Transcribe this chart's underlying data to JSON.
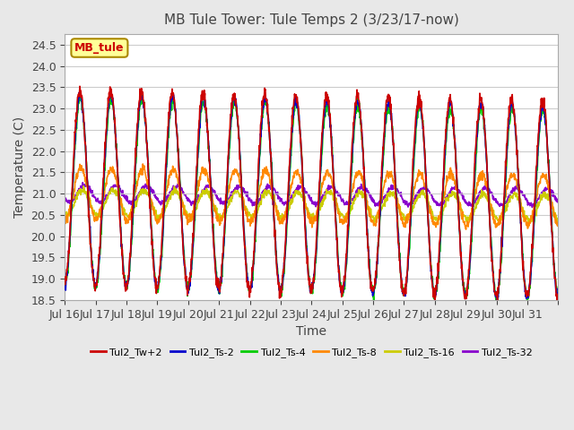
{
  "title": "MB Tule Tower: Tule Temps 2 (3/23/17-now)",
  "xlabel": "Time",
  "ylabel": "Temperature (C)",
  "ylim": [
    18.5,
    24.75
  ],
  "yticks": [
    18.5,
    19.0,
    19.5,
    20.0,
    20.5,
    21.0,
    21.5,
    22.0,
    22.5,
    23.0,
    23.5,
    24.0,
    24.5
  ],
  "xtick_labels": [
    "Jul 16",
    "Jul 17",
    "Jul 18",
    "Jul 19",
    "Jul 20",
    "Jul 21",
    "Jul 22",
    "Jul 23",
    "Jul 24",
    "Jul 25",
    "Jul 26",
    "Jul 27",
    "Jul 28",
    "Jul 29",
    "Jul 30",
    "Jul 31",
    ""
  ],
  "legend_label": "MB_tule",
  "legend_entries": [
    "Tul2_Tw+2",
    "Tul2_Ts-2",
    "Tul2_Ts-4",
    "Tul2_Ts-8",
    "Tul2_Ts-16",
    "Tul2_Ts-32"
  ],
  "line_colors": [
    "#cc0000",
    "#0000cc",
    "#00cc00",
    "#ff8800",
    "#cccc00",
    "#8800cc"
  ],
  "bg_color": "#e8e8e8",
  "plot_bg_color": "#ffffff",
  "grid_color": "#cccccc",
  "title_color": "#444444",
  "num_days": 16,
  "seed": 42
}
